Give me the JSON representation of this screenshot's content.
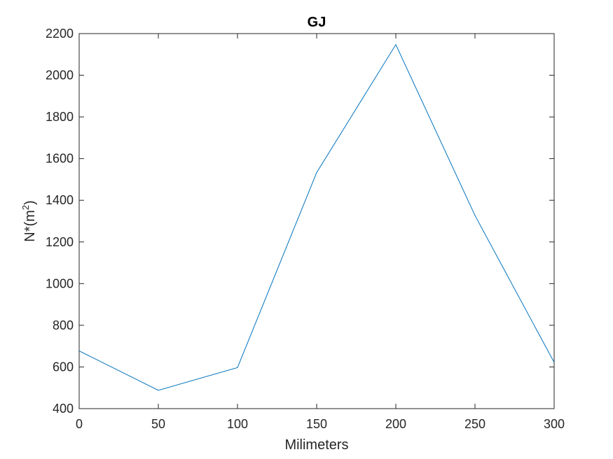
{
  "chart_data": {
    "type": "line",
    "title": "GJ",
    "xlabel": "Milimeters",
    "ylabel_main": "N*(m",
    "ylabel_sup": "2",
    "ylabel_close": ")",
    "xlim": [
      0,
      300
    ],
    "ylim": [
      400,
      2200
    ],
    "xticks": [
      0,
      50,
      100,
      150,
      200,
      250,
      300
    ],
    "yticks": [
      400,
      600,
      800,
      1000,
      1200,
      1400,
      1600,
      1800,
      2000,
      2200
    ],
    "grid": false,
    "series": [
      {
        "color": "#0072BD",
        "x": [
          0,
          50,
          100,
          150,
          200,
          250,
          300
        ],
        "y": [
          677,
          488,
          597,
          1533,
          2147,
          1327,
          622
        ]
      }
    ]
  }
}
